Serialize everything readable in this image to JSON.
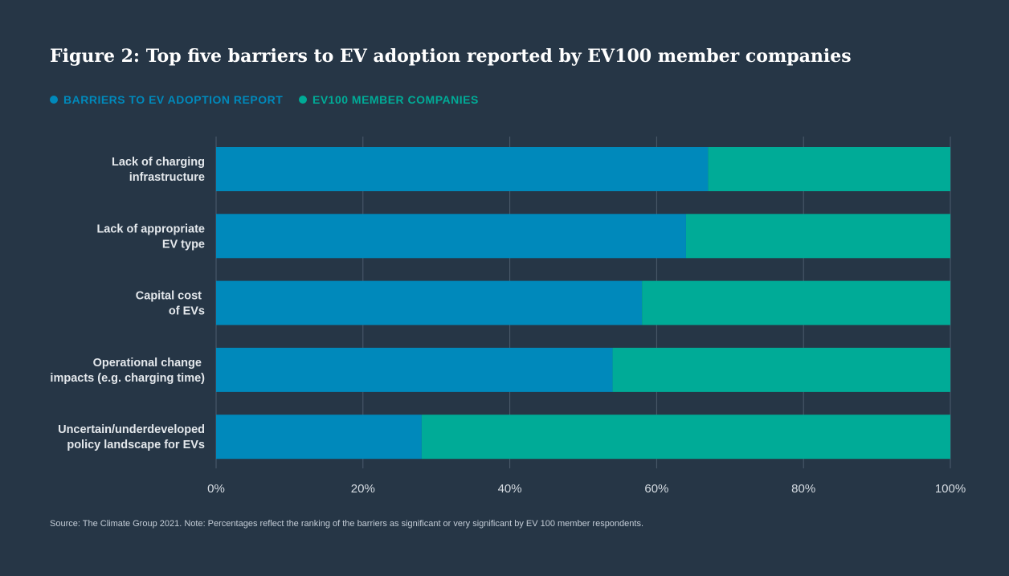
{
  "chart_data": {
    "type": "bar",
    "orientation": "horizontal",
    "stacked": true,
    "title": "Figure 2: Top five barriers to EV adoption reported by EV100 member companies",
    "categories": [
      [
        "Lack of charging",
        "infrastructure"
      ],
      [
        "Lack of appropriate",
        "EV type"
      ],
      [
        "Capital cost ",
        "of EVs"
      ],
      [
        "Operational change ",
        "impacts (e.g. charging time)"
      ],
      [
        "Uncertain/underdeveloped",
        "policy landscape for EVs"
      ]
    ],
    "series": [
      {
        "name": "BARRIERS TO EV ADOPTION REPORT",
        "color": "#0089bb",
        "values": [
          67,
          64,
          58,
          54,
          28
        ]
      },
      {
        "name": "EV100 MEMBER COMPANIES",
        "color": "#00ab97",
        "values": [
          33,
          36,
          42,
          46,
          72
        ]
      }
    ],
    "x_ticks": [
      0,
      20,
      40,
      60,
      80,
      100
    ],
    "x_tick_labels": [
      "0%",
      "20%",
      "40%",
      "60%",
      "80%",
      "100%"
    ],
    "xlim": [
      0,
      100
    ],
    "grid": true,
    "legend": "top-left",
    "source": "Source: The Climate Group 2021. Note: Percentages reflect the ranking of the barriers as significant or very significant by EV 100 member respondents."
  }
}
